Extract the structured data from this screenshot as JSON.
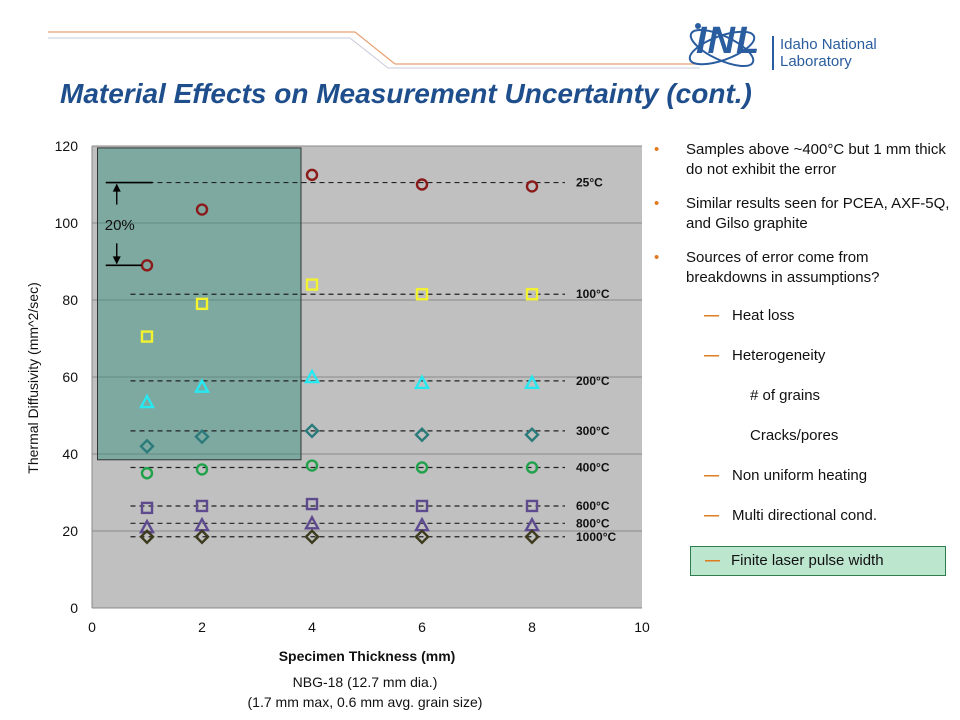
{
  "header": {
    "logo_mark": "INL",
    "logo_text": "Idaho National Laboratory",
    "title": "Material Effects on Measurement Uncertainty (cont.)"
  },
  "chart_data": {
    "type": "scatter",
    "xlabel": "Specimen Thickness (mm)",
    "ylabel": "Thermal Diffusivity (mm^2/sec)",
    "xlim": [
      0,
      10
    ],
    "ylim": [
      0,
      120
    ],
    "xticks": [
      0,
      2,
      4,
      6,
      8,
      10
    ],
    "yticks": [
      0,
      20,
      40,
      60,
      80,
      100,
      120
    ],
    "grid": "horizontal",
    "background": "#c0c0c0",
    "series": [
      {
        "name": "25°C",
        "marker": "circle",
        "color": "#8b1a1a",
        "line_y": 110.5,
        "x": [
          1,
          2,
          4,
          6,
          8
        ],
        "y": [
          89,
          103.5,
          112.5,
          110,
          109.5
        ]
      },
      {
        "name": "100°C",
        "marker": "square",
        "color": "#f2f230",
        "line_y": 81.5,
        "x": [
          1,
          2,
          4,
          6,
          8
        ],
        "y": [
          70.5,
          79,
          84,
          81.5,
          81.5
        ]
      },
      {
        "name": "200°C",
        "marker": "triangle",
        "color": "#27e8f0",
        "line_y": 59,
        "x": [
          1,
          2,
          4,
          6,
          8
        ],
        "y": [
          53.5,
          57.5,
          60,
          58.5,
          58.5
        ]
      },
      {
        "name": "300°C",
        "marker": "diamond",
        "color": "#2c7b7b",
        "line_y": 46,
        "x": [
          1,
          2,
          4,
          6,
          8
        ],
        "y": [
          42,
          44.5,
          46,
          45,
          45
        ]
      },
      {
        "name": "400°C",
        "marker": "circle",
        "color": "#1fa24a",
        "line_y": 36.5,
        "x": [
          1,
          2,
          4,
          6,
          8
        ],
        "y": [
          35,
          36,
          37,
          36.5,
          36.5
        ]
      },
      {
        "name": "600°C",
        "marker": "square",
        "color": "#5e4a8e",
        "line_y": 26.5,
        "x": [
          1,
          2,
          4,
          6,
          8
        ],
        "y": [
          26,
          26.5,
          27,
          26.5,
          26.5
        ]
      },
      {
        "name": "800°C",
        "marker": "triangle",
        "color": "#5e4a8e",
        "line_y": 22,
        "x": [
          1,
          2,
          4,
          6,
          8
        ],
        "y": [
          21,
          21.5,
          22,
          21.5,
          21.5
        ]
      },
      {
        "name": "1000°C",
        "marker": "diamond",
        "color": "#3d3b1e",
        "line_y": 18.5,
        "x": [
          1,
          2,
          4,
          6,
          8
        ],
        "y": [
          18.5,
          18.5,
          18.5,
          18.5,
          18.5
        ]
      }
    ],
    "highlight_region": {
      "x": [
        0.1,
        3.8
      ],
      "y": [
        38.5,
        119.5
      ],
      "fill": "#2e8f7a"
    },
    "annotation": {
      "text": "20%",
      "y_top": 110.5,
      "y_bottom": 89
    }
  },
  "caption": {
    "line1": "NBG-18 (12.7 mm dia.)",
    "line2": "(1.7 mm max, 0.6 mm avg. grain size)"
  },
  "bullets": {
    "b1": "Samples above ~400°C but 1 mm thick do not exhibit the error",
    "b2": "Similar results seen for PCEA, AXF-5Q, and Gilso graphite",
    "b3": "Sources of error come from breakdowns in assumptions?",
    "sub1": "Heat loss",
    "sub2": "Heterogeneity",
    "sub2a": "# of grains",
    "sub2b": "Cracks/pores",
    "sub3": "Non uniform heating",
    "sub4": "Multi directional cond.",
    "sub5": "Finite laser pulse width",
    "bullet_glyph": "•",
    "dash_glyph": "—"
  },
  "colors": {
    "accent": "#e07b1f",
    "title": "#1f4e8c",
    "logo": "#2a5d9f",
    "highlight": "#bde6cf"
  }
}
